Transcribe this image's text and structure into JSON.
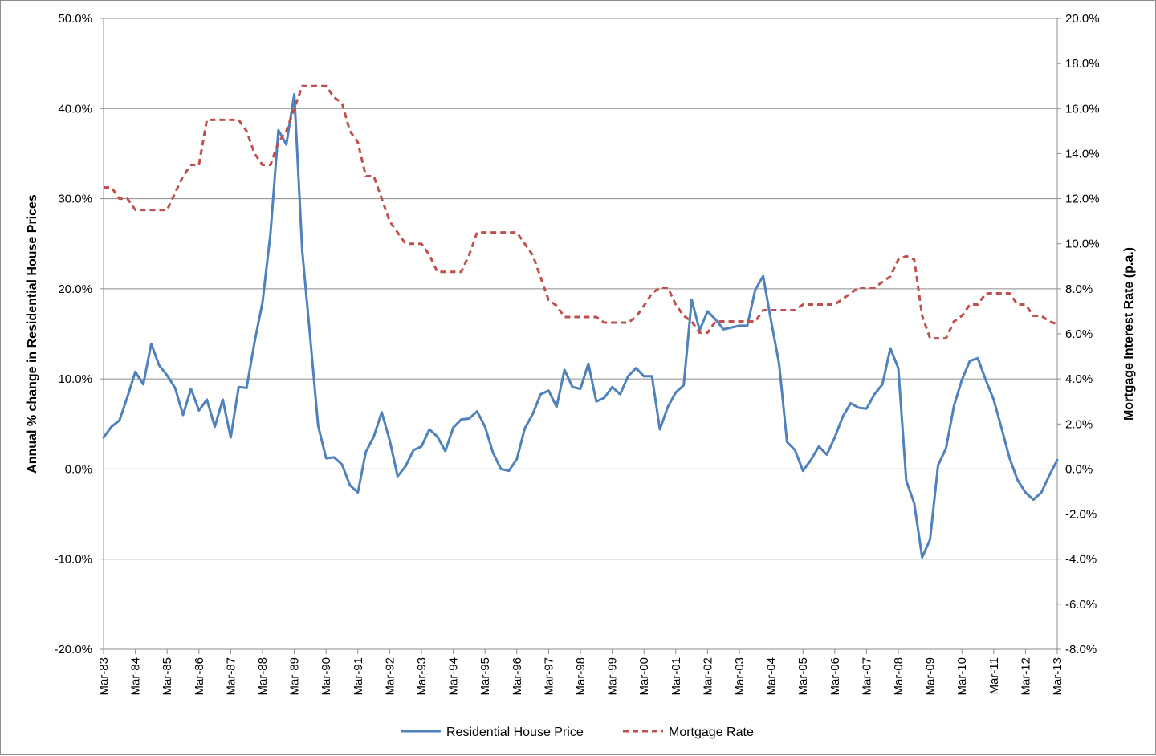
{
  "chart_data": {
    "type": "line",
    "x": [
      "Mar-83",
      "Jun-83",
      "Sep-83",
      "Dec-83",
      "Mar-84",
      "Jun-84",
      "Sep-84",
      "Dec-84",
      "Mar-85",
      "Jun-85",
      "Sep-85",
      "Dec-85",
      "Mar-86",
      "Jun-86",
      "Sep-86",
      "Dec-86",
      "Mar-87",
      "Jun-87",
      "Sep-87",
      "Dec-87",
      "Mar-88",
      "Jun-88",
      "Sep-88",
      "Dec-88",
      "Mar-89",
      "Jun-89",
      "Sep-89",
      "Dec-89",
      "Mar-90",
      "Jun-90",
      "Sep-90",
      "Dec-90",
      "Mar-91",
      "Jun-91",
      "Sep-91",
      "Dec-91",
      "Mar-92",
      "Jun-92",
      "Sep-92",
      "Dec-92",
      "Mar-93",
      "Jun-93",
      "Sep-93",
      "Dec-93",
      "Mar-94",
      "Jun-94",
      "Sep-94",
      "Dec-94",
      "Mar-95",
      "Jun-95",
      "Sep-95",
      "Dec-95",
      "Mar-96",
      "Jun-96",
      "Sep-96",
      "Dec-96",
      "Mar-97",
      "Jun-97",
      "Sep-97",
      "Dec-97",
      "Mar-98",
      "Jun-98",
      "Sep-98",
      "Dec-98",
      "Mar-99",
      "Jun-99",
      "Sep-99",
      "Dec-99",
      "Mar-00",
      "Jun-00",
      "Sep-00",
      "Dec-00",
      "Mar-01",
      "Jun-01",
      "Sep-01",
      "Dec-01",
      "Mar-02",
      "Jun-02",
      "Sep-02",
      "Dec-02",
      "Mar-03",
      "Jun-03",
      "Sep-03",
      "Dec-03",
      "Mar-04",
      "Jun-04",
      "Sep-04",
      "Dec-04",
      "Mar-05",
      "Jun-05",
      "Sep-05",
      "Dec-05",
      "Mar-06",
      "Jun-06",
      "Sep-06",
      "Dec-06",
      "Mar-07",
      "Jun-07",
      "Sep-07",
      "Dec-07",
      "Mar-08",
      "Jun-08",
      "Sep-08",
      "Dec-08",
      "Mar-09",
      "Jun-09",
      "Sep-09",
      "Dec-09",
      "Mar-10",
      "Jun-10",
      "Sep-10",
      "Dec-10",
      "Mar-11",
      "Jun-11",
      "Sep-11",
      "Dec-11",
      "Mar-12",
      "Jun-12",
      "Sep-12",
      "Dec-12",
      "Mar-13"
    ],
    "x_tick_labels": [
      "Mar-83",
      "Mar-84",
      "Mar-85",
      "Mar-86",
      "Mar-87",
      "Mar-88",
      "Mar-89",
      "Mar-90",
      "Mar-91",
      "Mar-92",
      "Mar-93",
      "Mar-94",
      "Mar-95",
      "Mar-96",
      "Mar-97",
      "Mar-98",
      "Mar-99",
      "Mar-00",
      "Mar-01",
      "Mar-02",
      "Mar-03",
      "Mar-04",
      "Mar-05",
      "Mar-06",
      "Mar-07",
      "Mar-08",
      "Mar-09",
      "Mar-10",
      "Mar-11",
      "Mar-12",
      "Mar-13"
    ],
    "series": [
      {
        "name": "Residential House Price",
        "axis": "left",
        "color": "#4f81bd",
        "style": "solid",
        "values": [
          3.5,
          4.7,
          5.4,
          8.0,
          10.8,
          9.4,
          13.9,
          11.5,
          10.4,
          9.0,
          6.0,
          8.9,
          6.5,
          7.7,
          4.7,
          7.7,
          3.5,
          9.1,
          9.0,
          14.1,
          18.5,
          26.1,
          37.6,
          36.0,
          41.6,
          24.2,
          14.6,
          4.8,
          1.2,
          1.3,
          0.5,
          -1.8,
          -2.6,
          1.9,
          3.6,
          6.3,
          3.2,
          -0.8,
          0.3,
          2.1,
          2.5,
          4.4,
          3.6,
          2.0,
          4.6,
          5.5,
          5.6,
          6.4,
          4.7,
          1.8,
          0.0,
          -0.2,
          1.1,
          4.5,
          6.1,
          8.3,
          8.7,
          6.9,
          11.0,
          9.1,
          8.9,
          11.7,
          7.5,
          7.9,
          9.1,
          8.3,
          10.3,
          11.2,
          10.3,
          10.3,
          4.4,
          6.9,
          8.5,
          9.3,
          18.8,
          15.4,
          17.5,
          16.6,
          15.5,
          15.7,
          15.9,
          15.9,
          19.9,
          21.4,
          16.4,
          11.7,
          3.0,
          2.1,
          -0.2,
          1.0,
          2.5,
          1.6,
          3.5,
          5.8,
          7.3,
          6.8,
          6.7,
          8.3,
          9.4,
          13.4,
          11.2,
          -1.3,
          -3.8,
          -9.8,
          -7.8,
          0.4,
          2.3,
          7.0,
          9.9,
          12.0,
          12.3,
          9.9,
          7.7,
          4.5,
          1.2,
          -1.2,
          -2.6,
          -3.4,
          -2.6,
          -0.7,
          1.0
        ]
      },
      {
        "name": "Mortgage Rate",
        "axis": "right",
        "color": "#c0504d",
        "style": "dashed",
        "values": [
          12.5,
          12.5,
          12.0,
          12.0,
          11.5,
          11.5,
          11.5,
          11.5,
          11.5,
          12.25,
          13.0,
          13.5,
          13.5,
          15.5,
          15.5,
          15.5,
          15.5,
          15.5,
          15.0,
          14.0,
          13.5,
          13.5,
          14.5,
          15.0,
          16.0,
          17.0,
          17.0,
          17.0,
          17.0,
          16.5,
          16.25,
          15.0,
          14.5,
          13.0,
          13.0,
          12.0,
          11.0,
          10.5,
          10.0,
          10.0,
          10.0,
          9.5,
          8.75,
          8.75,
          8.75,
          8.75,
          9.5,
          10.5,
          10.5,
          10.5,
          10.5,
          10.5,
          10.5,
          10.0,
          9.5,
          8.5,
          7.5,
          7.25,
          6.75,
          6.75,
          6.75,
          6.75,
          6.75,
          6.5,
          6.5,
          6.5,
          6.5,
          6.75,
          7.25,
          7.8,
          8.05,
          8.05,
          7.3,
          6.8,
          6.55,
          6.05,
          6.05,
          6.55,
          6.55,
          6.55,
          6.55,
          6.55,
          6.55,
          7.05,
          7.05,
          7.05,
          7.05,
          7.05,
          7.3,
          7.3,
          7.3,
          7.3,
          7.3,
          7.55,
          7.8,
          8.05,
          8.05,
          8.05,
          8.3,
          8.55,
          9.3,
          9.45,
          9.3,
          6.8,
          5.8,
          5.8,
          5.8,
          6.55,
          6.8,
          7.3,
          7.3,
          7.8,
          7.8,
          7.8,
          7.8,
          7.3,
          7.3,
          6.8,
          6.8,
          6.55,
          6.43
        ]
      }
    ],
    "y_left": {
      "label": "Annual % change in Residential House Prices",
      "min": -20,
      "max": 50,
      "step": 10,
      "tick_labels": [
        "-20.0%",
        "-10.0%",
        "0.0%",
        "10.0%",
        "20.0%",
        "30.0%",
        "40.0%",
        "50.0%"
      ]
    },
    "y_right": {
      "label": "Mortgage Interest Rate (p.a.)",
      "min": -8,
      "max": 20,
      "step": 2,
      "tick_labels": [
        "-8.0%",
        "-6.0%",
        "-4.0%",
        "-2.0%",
        "0.0%",
        "2.0%",
        "4.0%",
        "6.0%",
        "8.0%",
        "10.0%",
        "12.0%",
        "14.0%",
        "16.0%",
        "18.0%",
        "20.0%"
      ]
    },
    "grid": true,
    "legend": "bottom",
    "legend_entries": [
      "Residential House Price",
      "Mortgage Rate"
    ]
  }
}
